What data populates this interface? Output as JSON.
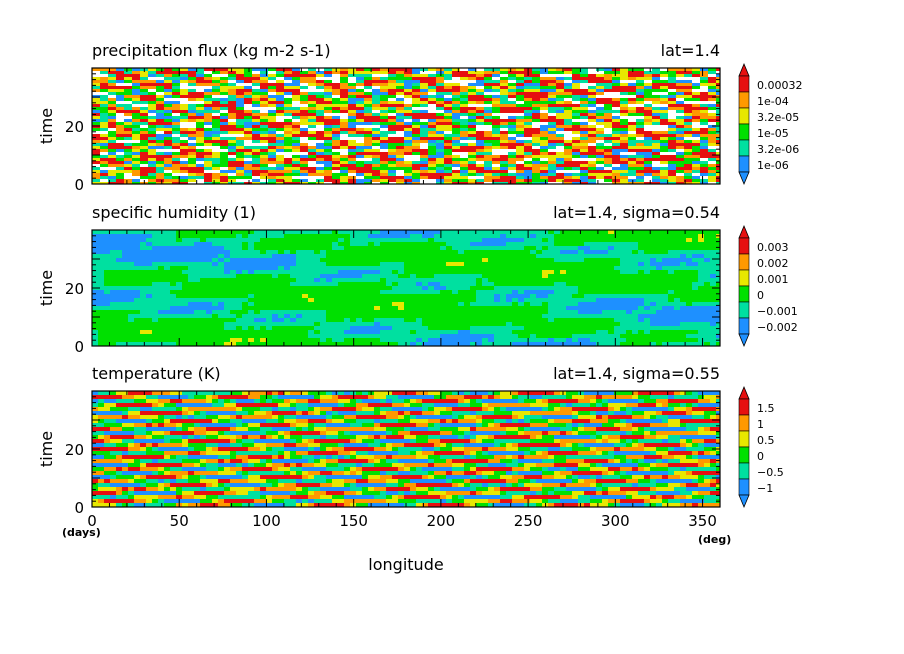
{
  "palette": [
    "#1e90ff",
    "#00e0a0",
    "#00e000",
    "#e8e800",
    "#ff9900",
    "#e61010"
  ],
  "chart_data": [
    {
      "type": "heatmap",
      "title": "precipitation flux (kg m-2 s-1)",
      "subtitle": "lat=1.4",
      "ylabel": "time",
      "xlim": [
        0,
        360
      ],
      "ylim": [
        0,
        40
      ],
      "yticks": [
        0,
        20
      ],
      "pattern": "noisy",
      "legend": {
        "labels": [
          "0.00032",
          "1e-04",
          "3.2e-05",
          "1e-05",
          "3.2e-06",
          "1e-06"
        ],
        "colors": [
          "#1e90ff",
          "#00e0a0",
          "#00e000",
          "#e8e800",
          "#ff9900",
          "#e61010"
        ]
      }
    },
    {
      "type": "heatmap",
      "title": "specific humidity (1)",
      "subtitle": "lat=1.4, sigma=0.54",
      "ylabel": "time",
      "xlim": [
        0,
        360
      ],
      "ylim": [
        0,
        40
      ],
      "yticks": [
        0,
        20
      ],
      "pattern": "smooth",
      "legend": {
        "labels": [
          "0.003",
          "0.002",
          "0.001",
          "0",
          "−0.001",
          "−0.002"
        ],
        "colors": [
          "#1e90ff",
          "#00e0a0",
          "#00e000",
          "#e8e800",
          "#ff9900",
          "#e61010"
        ]
      }
    },
    {
      "type": "heatmap",
      "title": "temperature (K)",
      "subtitle": "lat=1.4, sigma=0.55",
      "ylabel": "time",
      "xlim": [
        0,
        360
      ],
      "ylim": [
        0,
        40
      ],
      "yticks": [
        0,
        20
      ],
      "pattern": "waves",
      "legend": {
        "labels": [
          "1.5",
          "1",
          "0.5",
          "0",
          "−0.5",
          "−1"
        ],
        "colors": [
          "#1e90ff",
          "#00e0a0",
          "#00e000",
          "#e8e800",
          "#ff9900",
          "#e61010"
        ]
      }
    }
  ],
  "xaxis": {
    "label": "longitude",
    "ticks": [
      0,
      50,
      100,
      150,
      200,
      250,
      300,
      350
    ],
    "left_unit": "(days)",
    "right_unit": "(deg)"
  }
}
